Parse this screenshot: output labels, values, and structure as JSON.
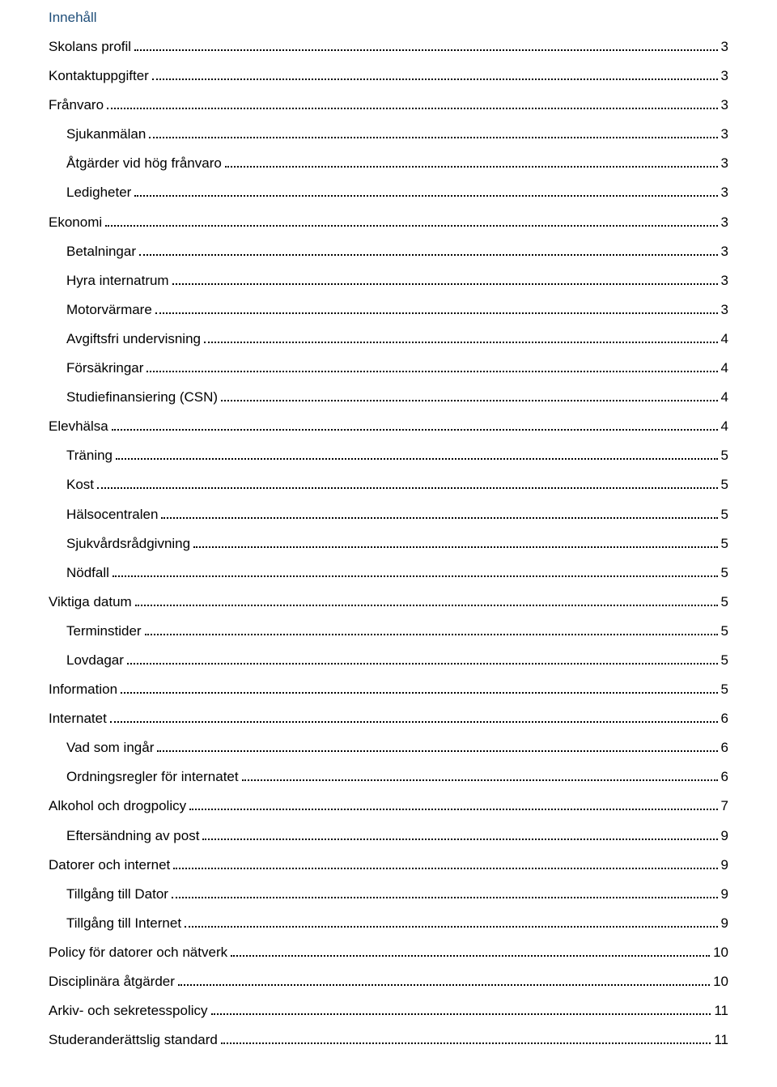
{
  "heading": "Innehåll",
  "text_color": "#000000",
  "heading_color": "#1f4e79",
  "font_family": "Arial, Helvetica, sans-serif",
  "font_size_pt": 13,
  "toc": [
    {
      "label": "Skolans profil",
      "page": "3",
      "level": 0
    },
    {
      "label": "Kontaktuppgifter",
      "page": "3",
      "level": 0
    },
    {
      "label": "Frånvaro",
      "page": "3",
      "level": 0
    },
    {
      "label": "Sjukanmälan",
      "page": "3",
      "level": 1
    },
    {
      "label": "Åtgärder vid hög frånvaro",
      "page": "3",
      "level": 1
    },
    {
      "label": "Ledigheter",
      "page": "3",
      "level": 1
    },
    {
      "label": "Ekonomi",
      "page": "3",
      "level": 0
    },
    {
      "label": "Betalningar",
      "page": "3",
      "level": 1
    },
    {
      "label": "Hyra internatrum",
      "page": "3",
      "level": 1
    },
    {
      "label": "Motorvärmare",
      "page": "3",
      "level": 1
    },
    {
      "label": "Avgiftsfri undervisning",
      "page": "4",
      "level": 1
    },
    {
      "label": "Försäkringar",
      "page": "4",
      "level": 1
    },
    {
      "label": "Studiefinansiering (CSN)",
      "page": "4",
      "level": 1
    },
    {
      "label": "Elevhälsa",
      "page": "4",
      "level": 0
    },
    {
      "label": "Träning",
      "page": "5",
      "level": 1
    },
    {
      "label": "Kost",
      "page": "5",
      "level": 1
    },
    {
      "label": "Hälsocentralen",
      "page": "5",
      "level": 1
    },
    {
      "label": "Sjukvårdsrådgivning",
      "page": "5",
      "level": 1
    },
    {
      "label": "Nödfall",
      "page": "5",
      "level": 1
    },
    {
      "label": "Viktiga datum",
      "page": "5",
      "level": 0
    },
    {
      "label": "Terminstider",
      "page": "5",
      "level": 1
    },
    {
      "label": "Lovdagar",
      "page": "5",
      "level": 1
    },
    {
      "label": "Information",
      "page": "5",
      "level": 0
    },
    {
      "label": "Internatet",
      "page": "6",
      "level": 0
    },
    {
      "label": "Vad som ingår",
      "page": "6",
      "level": 1
    },
    {
      "label": "Ordningsregler för internatet",
      "page": "6",
      "level": 1
    },
    {
      "label": "Alkohol och drogpolicy",
      "page": "7",
      "level": 0
    },
    {
      "label": "Eftersändning av post",
      "page": "9",
      "level": 1
    },
    {
      "label": "Datorer och internet",
      "page": "9",
      "level": 0
    },
    {
      "label": "Tillgång till Dator",
      "page": "9",
      "level": 1
    },
    {
      "label": "Tillgång till Internet",
      "page": "9",
      "level": 1
    },
    {
      "label": "Policy för datorer och nätverk",
      "page": "10",
      "level": 0
    },
    {
      "label": "Disciplinära åtgärder",
      "page": "10",
      "level": 0
    },
    {
      "label": "Arkiv- och sekretesspolicy",
      "page": "11",
      "level": 0
    },
    {
      "label": "Studeranderättslig standard",
      "page": "11",
      "level": 0
    }
  ]
}
